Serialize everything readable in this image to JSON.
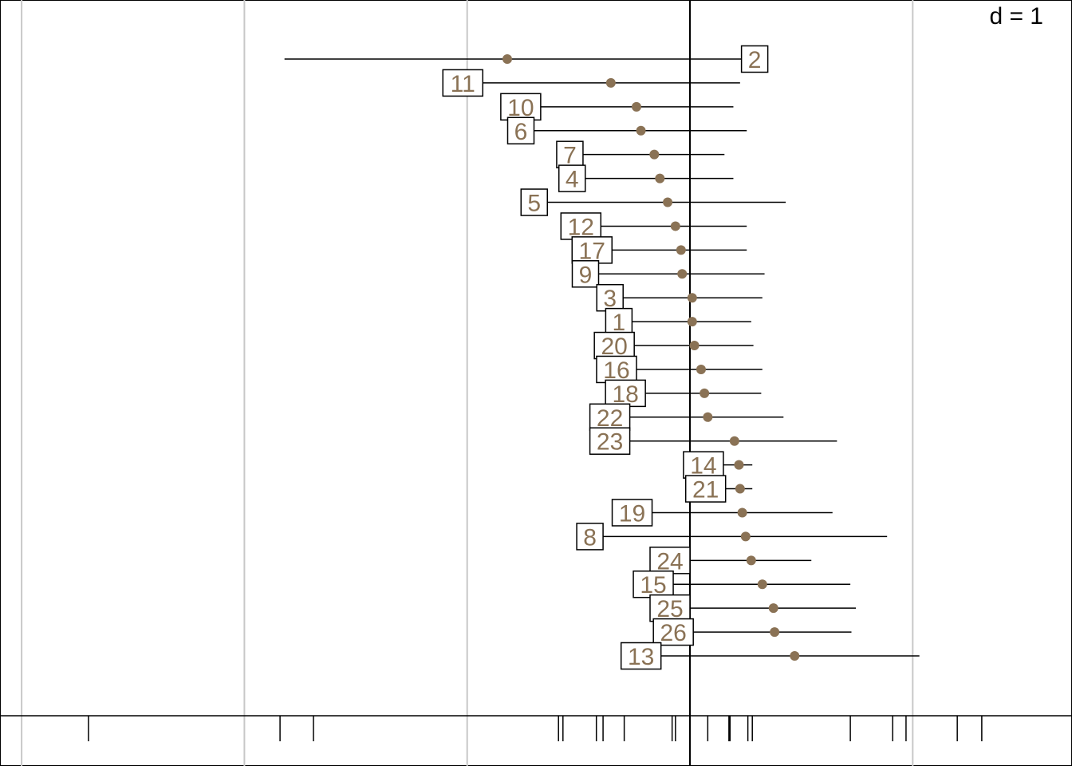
{
  "chart_data": {
    "type": "dotplot-interval",
    "scale_label": "d = 1",
    "x_axis": {
      "zero": 0,
      "grid_step": 1,
      "grid_values": [
        -3,
        -2,
        -1,
        0,
        1
      ]
    },
    "series": [
      {
        "label": "2",
        "value": -0.82,
        "low": -1.82,
        "high": 0.26
      },
      {
        "label": "11",
        "value": -0.355,
        "low": -0.93,
        "high": 0.225
      },
      {
        "label": "10",
        "value": -0.24,
        "low": -0.67,
        "high": 0.195
      },
      {
        "label": "6",
        "value": -0.22,
        "low": -0.7,
        "high": 0.255
      },
      {
        "label": "7",
        "value": -0.16,
        "low": -0.48,
        "high": 0.155
      },
      {
        "label": "4",
        "value": -0.135,
        "low": -0.47,
        "high": 0.195
      },
      {
        "label": "5",
        "value": -0.1,
        "low": -0.64,
        "high": 0.43
      },
      {
        "label": "12",
        "value": -0.065,
        "low": -0.4,
        "high": 0.255
      },
      {
        "label": "17",
        "value": -0.04,
        "low": -0.35,
        "high": 0.255
      },
      {
        "label": "9",
        "value": -0.035,
        "low": -0.41,
        "high": 0.335
      },
      {
        "label": "3",
        "value": 0.01,
        "low": -0.3,
        "high": 0.325
      },
      {
        "label": "1",
        "value": 0.01,
        "low": -0.26,
        "high": 0.275
      },
      {
        "label": "20",
        "value": 0.02,
        "low": -0.25,
        "high": 0.285
      },
      {
        "label": "16",
        "value": 0.05,
        "low": -0.24,
        "high": 0.325
      },
      {
        "label": "18",
        "value": 0.065,
        "low": -0.2,
        "high": 0.32
      },
      {
        "label": "22",
        "value": 0.08,
        "low": -0.27,
        "high": 0.42
      },
      {
        "label": "23",
        "value": 0.2,
        "low": -0.27,
        "high": 0.66
      },
      {
        "label": "14",
        "value": 0.22,
        "low": 0.15,
        "high": 0.28
      },
      {
        "label": "21",
        "value": 0.225,
        "low": 0.16,
        "high": 0.28
      },
      {
        "label": "19",
        "value": 0.235,
        "low": -0.17,
        "high": 0.64
      },
      {
        "label": "8",
        "value": 0.25,
        "low": -0.39,
        "high": 0.885
      },
      {
        "label": "24",
        "value": 0.275,
        "low": 0.0,
        "high": 0.545
      },
      {
        "label": "15",
        "value": 0.325,
        "low": -0.075,
        "high": 0.72
      },
      {
        "label": "25",
        "value": 0.375,
        "low": 0.0,
        "high": 0.745
      },
      {
        "label": "26",
        "value": 0.38,
        "low": 0.015,
        "high": 0.725
      },
      {
        "label": "13",
        "value": 0.47,
        "low": -0.13,
        "high": 1.03
      }
    ],
    "rug": [
      -2.7,
      -1.84,
      -1.69,
      -0.59,
      -0.57,
      -0.42,
      -0.39,
      -0.295,
      -0.08,
      -0.065,
      0.08,
      0.175,
      0.18,
      0.26,
      0.28,
      0.72,
      0.91,
      0.97,
      1.2,
      1.31
    ]
  },
  "colors": {
    "dot": "#8a7255",
    "label_text": "#8a7255",
    "line": "#000000",
    "grid": "#c8c8c8",
    "box_fill": "#ffffff"
  }
}
